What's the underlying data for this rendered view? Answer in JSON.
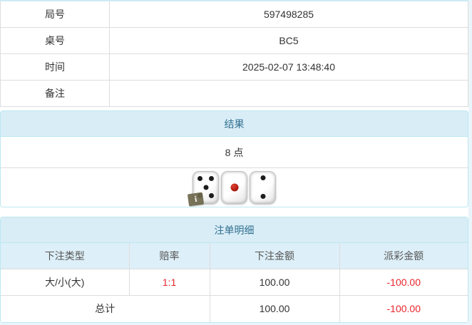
{
  "info_table": {
    "rows": [
      {
        "label": "局号",
        "value": "597498285"
      },
      {
        "label": "桌号",
        "value": "BC5"
      },
      {
        "label": "时间",
        "value": "2025-02-07 13:48:40"
      },
      {
        "label": "备注",
        "value": ""
      }
    ]
  },
  "result_panel": {
    "title": "结果",
    "points": "8 点",
    "dice": [
      {
        "value": 5,
        "color": "black",
        "info_badge": true
      },
      {
        "value": 1,
        "color": "red",
        "info_badge": false
      },
      {
        "value": 2,
        "color": "black",
        "info_badge": false
      }
    ],
    "info_badge_glyph": "i"
  },
  "bet_panel": {
    "title": "注单明细",
    "columns": [
      "下注类型",
      "赔率",
      "下注金额",
      "派彩金额"
    ],
    "rows": [
      {
        "bet_type": "大/小(大)",
        "odds": "1:1",
        "bet_amount": "100.00",
        "payout": "-100.00"
      }
    ],
    "total": {
      "label": "总计",
      "bet_amount": "100.00",
      "payout": "-100.00"
    }
  },
  "colors": {
    "heading_bg": "#d9edf7",
    "heading_text": "#31708f",
    "panel_border": "#bce8f1",
    "grid_border": "#dddddd",
    "red": "#e8262c",
    "text_dark": "#333333"
  }
}
